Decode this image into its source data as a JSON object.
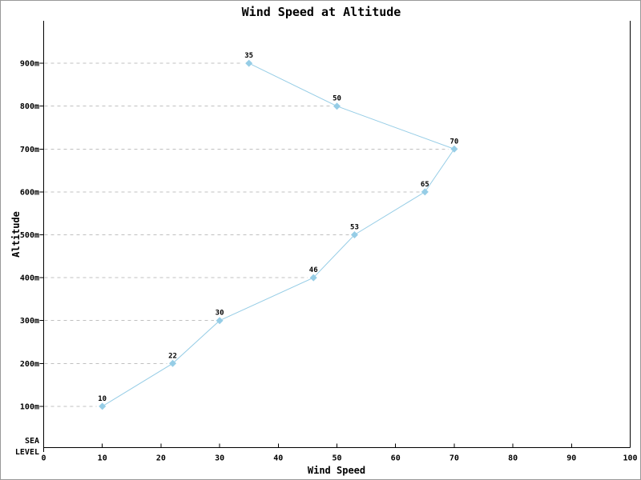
{
  "window": {
    "background": "#ffffff",
    "border_color": "#999999"
  },
  "chart_data": {
    "type": "line",
    "title": "Wind Speed at Altitude",
    "xlabel": "Wind Speed",
    "ylabel": "Altitude",
    "xlim": [
      0,
      100
    ],
    "x_ticks": [
      0,
      10,
      20,
      30,
      40,
      50,
      60,
      70,
      80,
      90,
      100
    ],
    "y_ticks": [
      {
        "value": 900,
        "label": "900m"
      },
      {
        "value": 800,
        "label": "800m"
      },
      {
        "value": 700,
        "label": "700m"
      },
      {
        "value": 600,
        "label": "600m"
      },
      {
        "value": 500,
        "label": "500m"
      },
      {
        "value": 400,
        "label": "400m"
      },
      {
        "value": 300,
        "label": "300m"
      },
      {
        "value": 200,
        "label": "200m"
      },
      {
        "value": 100,
        "label": "100m"
      },
      {
        "value": 0,
        "label": "SEA LEVEL",
        "label_lines": [
          "SEA",
          "LEVEL"
        ]
      }
    ],
    "grid": {
      "orientation": "horizontal",
      "style": "dashed",
      "color": "#c0c0c0",
      "extent": "axis-to-data-point"
    },
    "legend": "none",
    "axis_color": "#000000",
    "series": [
      {
        "name": "wind-speed-profile",
        "color": "#96cde6",
        "marker": "diamond",
        "points": [
          {
            "altitude": 100,
            "wind_speed": 10,
            "label": "10"
          },
          {
            "altitude": 200,
            "wind_speed": 22,
            "label": "22"
          },
          {
            "altitude": 300,
            "wind_speed": 30,
            "label": "30"
          },
          {
            "altitude": 400,
            "wind_speed": 46,
            "label": "46"
          },
          {
            "altitude": 500,
            "wind_speed": 53,
            "label": "53"
          },
          {
            "altitude": 600,
            "wind_speed": 65,
            "label": "65"
          },
          {
            "altitude": 700,
            "wind_speed": 70,
            "label": "70"
          },
          {
            "altitude": 800,
            "wind_speed": 50,
            "label": "50"
          },
          {
            "altitude": 900,
            "wind_speed": 35,
            "label": "35"
          }
        ]
      }
    ]
  }
}
